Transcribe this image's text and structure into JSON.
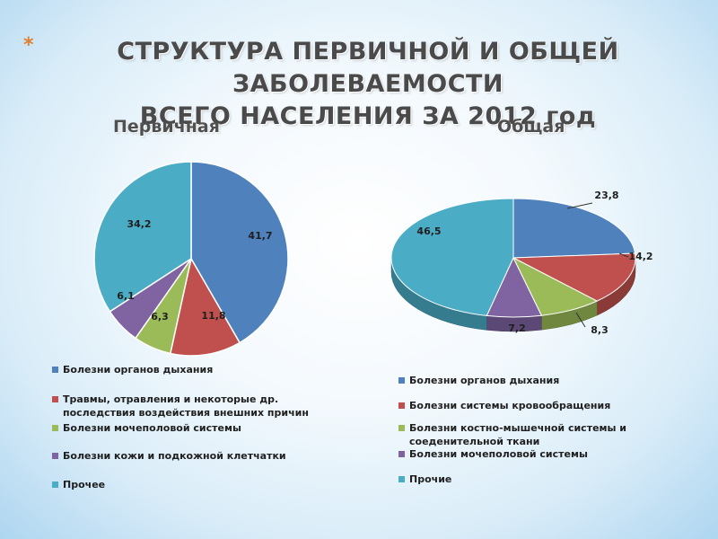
{
  "slide": {
    "bullet": "*",
    "title_line1": "СТРУКТУРА ПЕРВИЧНОЙ И ОБЩЕЙ ЗАБОЛЕВАЕМОСТИ",
    "title_line2": "ВСЕГО НАСЕЛЕНИЯ ЗА 2012 год"
  },
  "colors": {
    "blue": "#4f81bd",
    "red": "#c0504d",
    "green": "#9bbb59",
    "purple": "#8064a2",
    "cyan": "#4bacc6"
  },
  "chart_data": [
    {
      "type": "pie",
      "title": "Первичная",
      "slices": [
        {
          "label": "Болезни органов дыхания",
          "value": 41.7,
          "display": "41,7",
          "color": "#4f81bd"
        },
        {
          "label": "Травмы, отравления и некоторые др. последствия воздействия внешних причин",
          "value": 11.8,
          "display": "11,8",
          "color": "#c0504d"
        },
        {
          "label": "Болезни мочеполовой системы",
          "value": 6.3,
          "display": "6,3",
          "color": "#9bbb59"
        },
        {
          "label": "Болезни кожи и подкожной клетчатки",
          "value": 6.1,
          "display": "6,1",
          "color": "#8064a2"
        },
        {
          "label": "Прочее",
          "value": 34.2,
          "display": "34,2",
          "color": "#4bacc6"
        }
      ],
      "legend": [
        "Болезни органов дыхания",
        "Травмы, отравления и некоторые др. последствия воздействия внешних причин",
        "Болезни мочеполовой системы",
        "Болезни кожи и подкожной клетчатки",
        "Прочее"
      ],
      "legend_placement": "bottom"
    },
    {
      "type": "pie",
      "style": "3d",
      "title": "Общая",
      "slices": [
        {
          "label": "Болезни органов дыхания",
          "value": 23.8,
          "display": "23,8",
          "color": "#4f81bd"
        },
        {
          "label": "Болезни системы кровообращения",
          "value": 14.2,
          "display": "14,2",
          "color": "#c0504d"
        },
        {
          "label": "Болезни костно-мышечной системы и соеденительной ткани",
          "value": 8.3,
          "display": "8,3",
          "color": "#9bbb59"
        },
        {
          "label": "Болезни мочеполовой системы",
          "value": 7.2,
          "display": "7,2",
          "color": "#8064a2"
        },
        {
          "label": "Прочие",
          "value": 46.5,
          "display": "46,5",
          "color": "#4bacc6"
        }
      ],
      "legend": [
        "Болезни органов дыхания",
        "Болезни системы кровообращения",
        "Болезни костно-мышечной системы и соеденительной ткани",
        "Болезни мочеполовой системы",
        "Прочие"
      ],
      "legend_placement": "bottom"
    }
  ]
}
